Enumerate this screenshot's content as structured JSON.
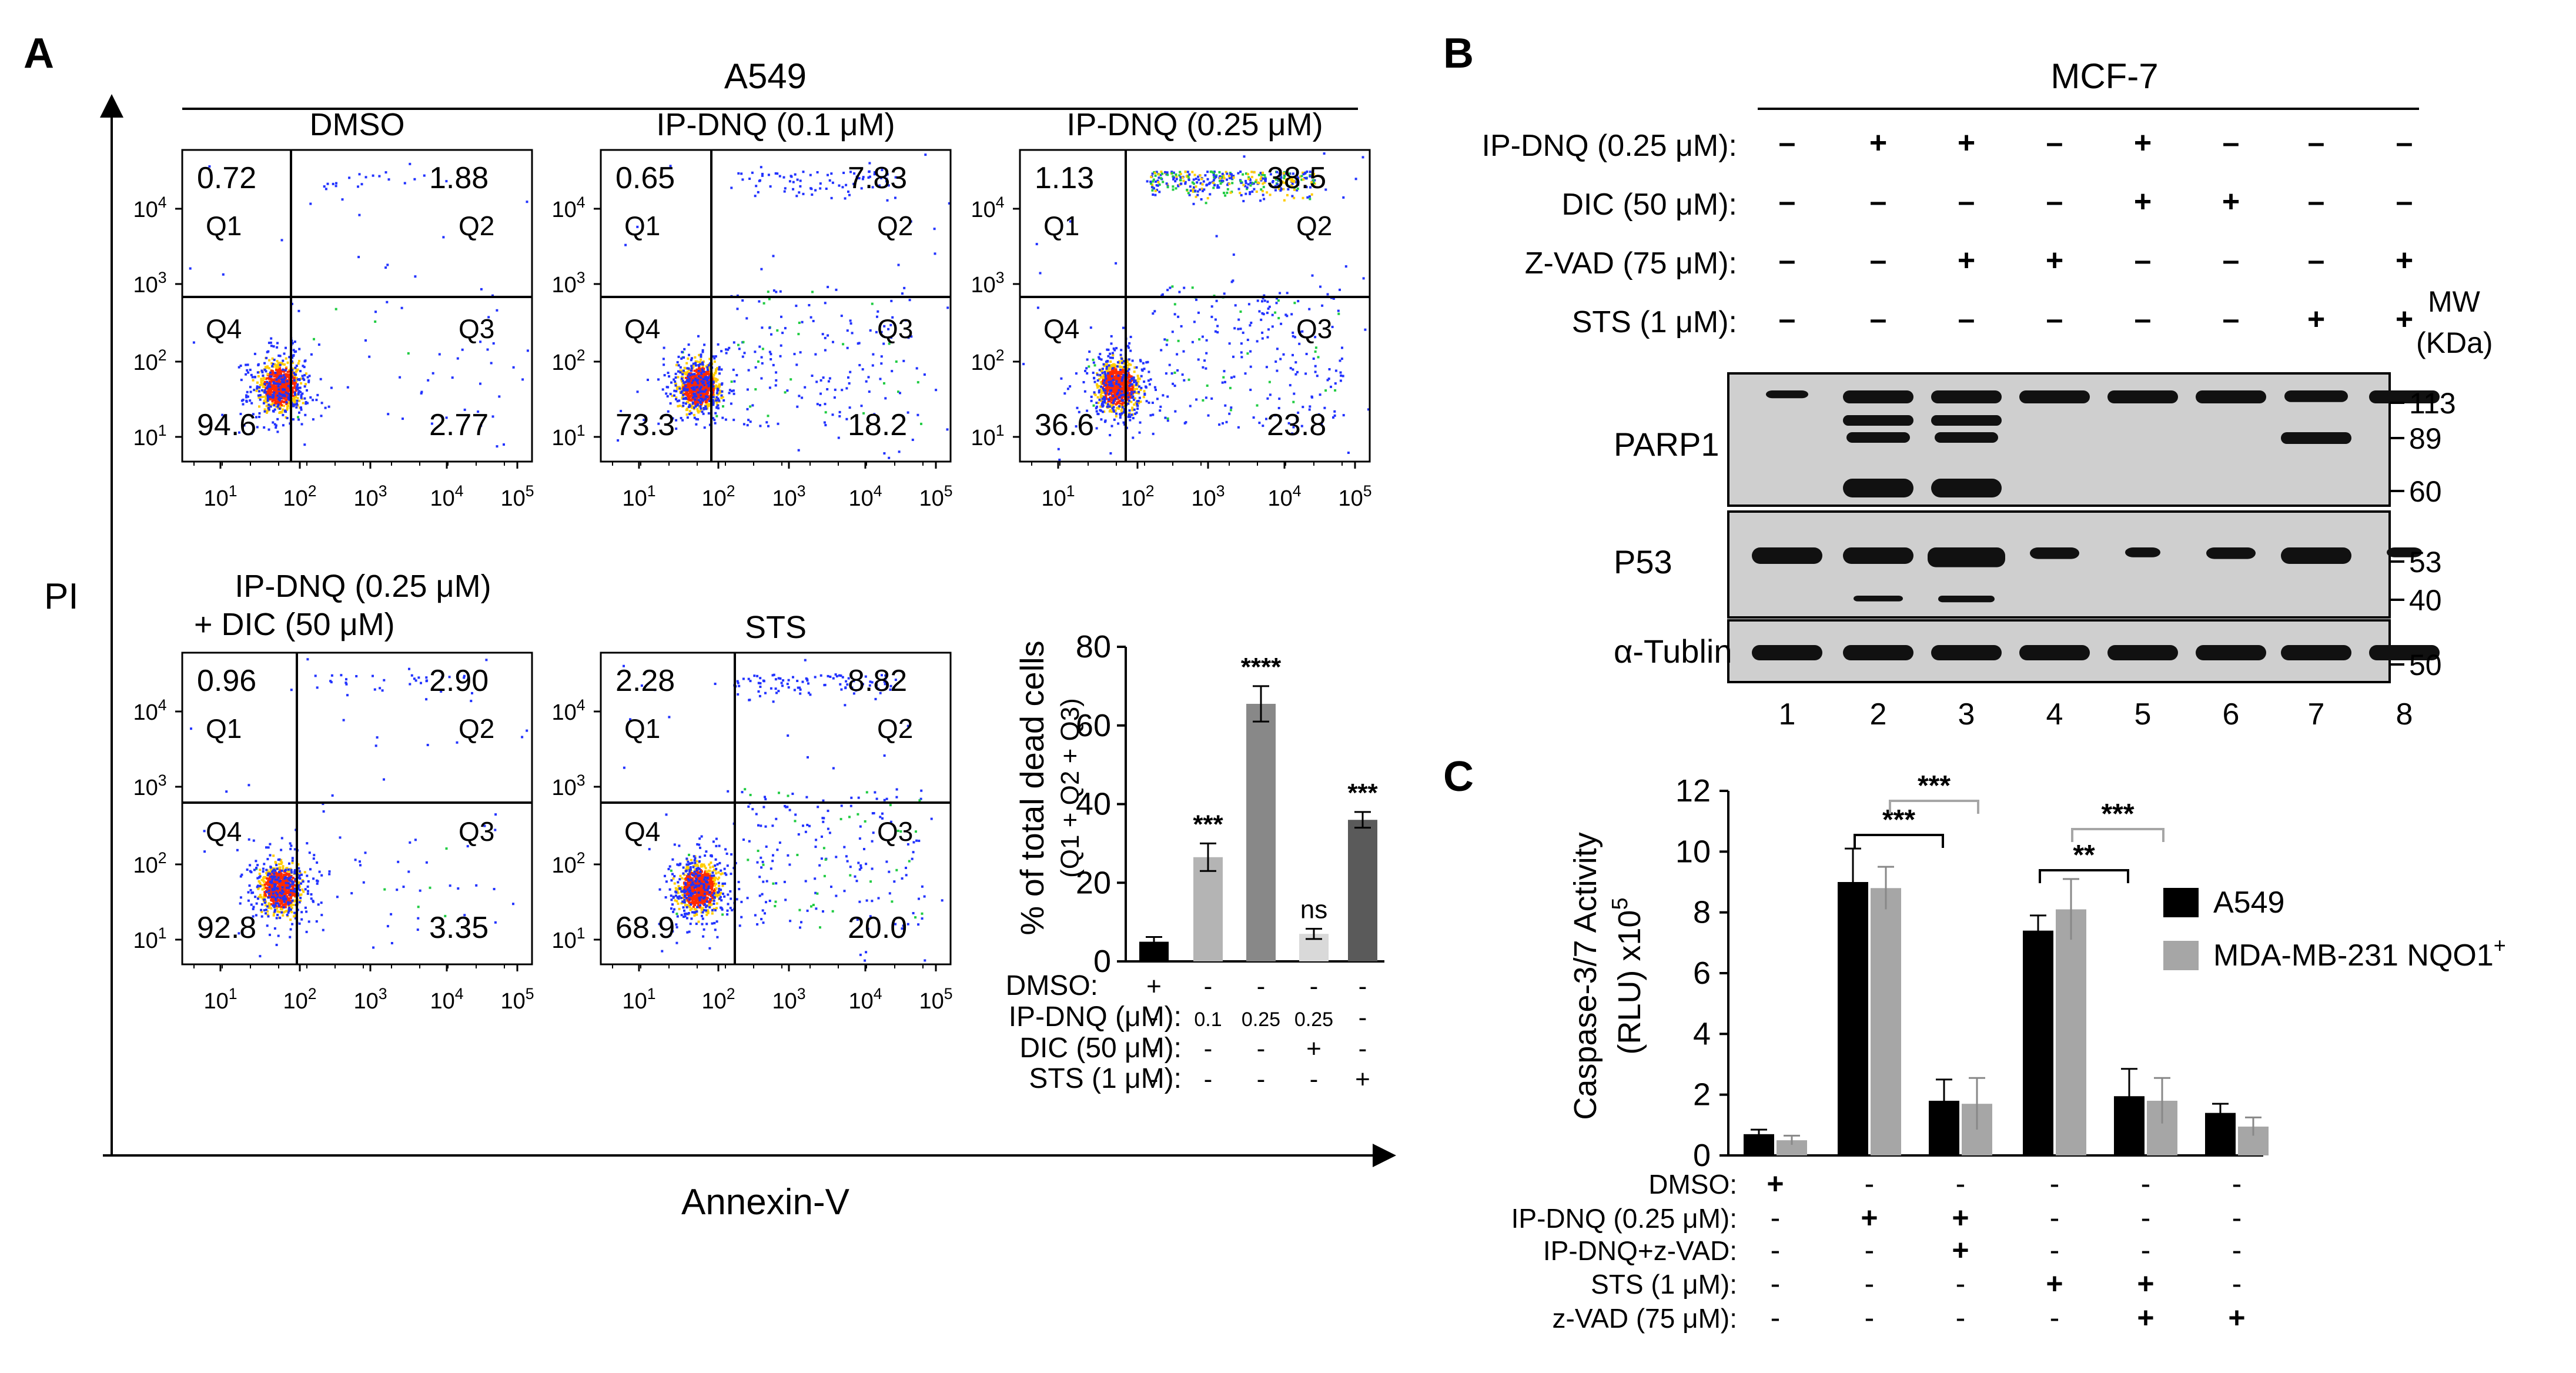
{
  "panels": {
    "A": {
      "letter": "A",
      "cell_line": "A549",
      "y_axis_label": "PI",
      "x_axis_label": "Annexin-V",
      "flow_plots": [
        {
          "title": "DMSO",
          "q1": "0.72",
          "q2": "1.88",
          "q3": "2.77",
          "q4": "94.6",
          "q2_density": 0.02,
          "q3_density": 0.03
        },
        {
          "title": "IP-DNQ  (0.1 μM)",
          "q1": "0.65",
          "q2": "7.83",
          "q3": "18.2",
          "q4": "73.3",
          "q2_density": 0.08,
          "q3_density": 0.18
        },
        {
          "title": "IP-DNQ  (0.25 μM)",
          "q1": "1.13",
          "q2": "38.5",
          "q3": "23.8",
          "q4": "36.6",
          "q2_density": 0.38,
          "q3_density": 0.24
        },
        {
          "title": "IP-DNQ  (0.25 μM)",
          "subtitle": "+ DIC (50 μM)",
          "q1": "0.96",
          "q2": "2.90",
          "q3": "3.35",
          "q4": "92.8",
          "q2_density": 0.03,
          "q3_density": 0.03
        },
        {
          "title": "STS",
          "q1": "2.28",
          "q2": "8.82",
          "q3": "20.0",
          "q4": "68.9",
          "q2_density": 0.09,
          "q3_density": 0.2
        }
      ],
      "quadrant_labels": [
        "Q1",
        "Q2",
        "Q3",
        "Q4"
      ],
      "y_ticks": [
        "10",
        "10",
        "10",
        "10"
      ],
      "y_tick_exps": [
        "1",
        "2",
        "3",
        "4"
      ],
      "x_ticks": [
        "10",
        "10",
        "10",
        "10",
        "10"
      ],
      "x_tick_exps": [
        "1",
        "2",
        "3",
        "4",
        "5"
      ]
    },
    "B": {
      "letter": "B",
      "cell_line": "MCF-7",
      "treatments": [
        {
          "label": "IP-DNQ (0.25 μM):",
          "marks": [
            "–",
            "+",
            "+",
            "–",
            "+",
            "–",
            "–",
            "–"
          ]
        },
        {
          "label": "DIC (50 μM):",
          "marks": [
            "–",
            "–",
            "–",
            "–",
            "+",
            "+",
            "–",
            "–"
          ]
        },
        {
          "label": "Z-VAD (75 μM):",
          "marks": [
            "–",
            "–",
            "+",
            "+",
            "–",
            "–",
            "–",
            "+"
          ]
        },
        {
          "label": "STS (1 μM):",
          "marks": [
            "–",
            "–",
            "–",
            "–",
            "–",
            "–",
            "+",
            "+"
          ]
        }
      ],
      "mw_header": "MW",
      "mw_unit": "(KDa)",
      "blots": [
        {
          "name": "PARP1",
          "markers": [
            "113",
            "89",
            "60"
          ]
        },
        {
          "name": "P53",
          "markers": [
            "53",
            "40"
          ]
        },
        {
          "name": "α-Tublin",
          "markers": [
            "50"
          ]
        }
      ],
      "lanes": [
        "1",
        "2",
        "3",
        "4",
        "5",
        "6",
        "7",
        "8"
      ]
    },
    "C": {
      "letter": "C"
    }
  },
  "chart_data": [
    {
      "type": "bar",
      "title": "",
      "ylabel": "% of total dead cells",
      "ylabel2": "(Q1 + Q2 + Q3)",
      "ylim": [
        0,
        80
      ],
      "yticks": [
        "0",
        "20",
        "40",
        "60",
        "80"
      ],
      "values": [
        5,
        26.5,
        65.5,
        7,
        36
      ],
      "errors": [
        1.2,
        3.5,
        4.5,
        1.3,
        2
      ],
      "colors": [
        "#000000",
        "#b4b4b4",
        "#888888",
        "#d9d9d9",
        "#5a5a5a"
      ],
      "significance": [
        "",
        "***",
        "****",
        "ns",
        "***"
      ],
      "condition_rows": [
        {
          "label": "DMSO:",
          "marks": [
            "+",
            "-",
            "-",
            "-",
            "-"
          ]
        },
        {
          "label": "IP-DNQ (μM):",
          "marks": [
            "-",
            "0.1",
            "0.25",
            "0.25",
            "-"
          ]
        },
        {
          "label": "DIC (50 μM):",
          "marks": [
            "-",
            "-",
            "-",
            "+",
            "-"
          ]
        },
        {
          "label": "STS (1 μM):",
          "marks": [
            "-",
            "-",
            "-",
            "-",
            "+"
          ]
        }
      ]
    },
    {
      "type": "bar",
      "ylabel": "Caspase-3/7 Activity",
      "ylabel2": "(RLU) x10",
      "ylabel2_exp": "5",
      "ylim": [
        0,
        12
      ],
      "yticks": [
        "0",
        "2",
        "4",
        "6",
        "8",
        "10",
        "12"
      ],
      "series": [
        {
          "name": "A549",
          "color": "#000000",
          "values": [
            0.7,
            9.0,
            1.8,
            7.4,
            1.95,
            1.4
          ],
          "errors": [
            0.15,
            1.1,
            0.7,
            0.5,
            0.9,
            0.3
          ]
        },
        {
          "name": "MDA-MB-231 NQO1",
          "name_sup": "+",
          "color": "#a6a6a6",
          "values": [
            0.5,
            8.8,
            1.7,
            8.1,
            1.8,
            0.95
          ],
          "errors": [
            0.15,
            0.7,
            0.85,
            1.0,
            0.75,
            0.3
          ]
        }
      ],
      "significance": [
        {
          "from": 1,
          "to": 2,
          "label": "***",
          "series": "A549"
        },
        {
          "from": 1,
          "to": 2,
          "label": "***",
          "series": "MDA-MB-231 NQO1"
        },
        {
          "from": 3,
          "to": 4,
          "label": "**",
          "series": "A549"
        },
        {
          "from": 3,
          "to": 4,
          "label": "***",
          "series": "MDA-MB-231 NQO1"
        }
      ],
      "condition_rows": [
        {
          "label": "DMSO:",
          "marks": [
            "+",
            "-",
            "-",
            "-",
            "-",
            "-"
          ]
        },
        {
          "label": "IP-DNQ (0.25 μM):",
          "marks": [
            "-",
            "+",
            "+",
            "-",
            "-",
            "-"
          ]
        },
        {
          "label": "IP-DNQ+z-VAD:",
          "marks": [
            "-",
            "-",
            "+",
            "-",
            "-",
            "-"
          ]
        },
        {
          "label": "STS (1 μM):",
          "marks": [
            "-",
            "-",
            "-",
            "+",
            "+",
            "-"
          ]
        },
        {
          "label": "z-VAD (75 μM):",
          "marks": [
            "-",
            "-",
            "-",
            "-",
            "+",
            "+"
          ]
        }
      ]
    }
  ]
}
